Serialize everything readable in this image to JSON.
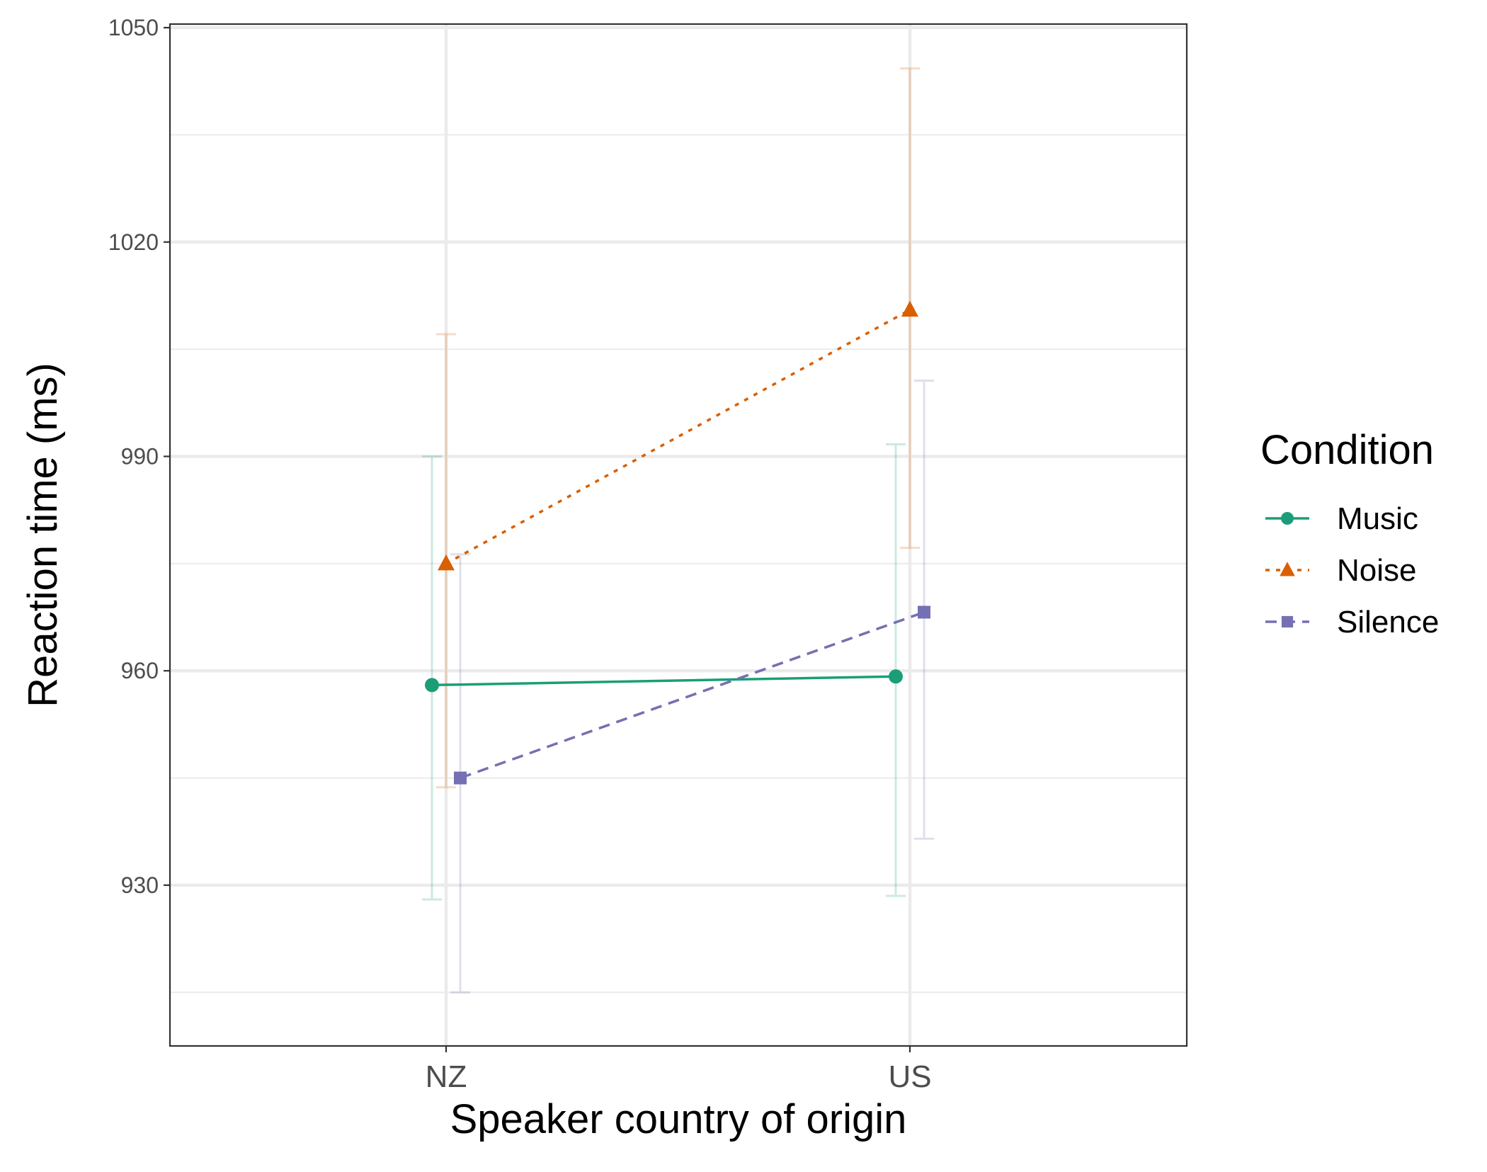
{
  "chart_data": {
    "type": "line",
    "xlabel": "Speaker country of origin",
    "ylabel": "Reaction time (ms)",
    "categories": [
      "NZ",
      "US"
    ],
    "ylim": [
      907.5,
      1050.5
    ],
    "y_ticks": [
      930,
      960,
      990,
      1020,
      1050
    ],
    "y_tick_labels": [
      "930",
      "960",
      "990",
      "1020",
      "1050"
    ],
    "grid": true,
    "legend": {
      "title": "Condition",
      "position": "right"
    },
    "series": [
      {
        "name": "Music",
        "color": "#1b9e77",
        "marker": "circle",
        "linestyle": "solid",
        "values": [
          958.0,
          959.2
        ],
        "error_low": [
          928.0,
          928.5
        ],
        "error_high": [
          990.0,
          991.7
        ]
      },
      {
        "name": "Noise",
        "color": "#d95f02",
        "marker": "triangle",
        "linestyle": "dotted",
        "values": [
          975.0,
          1010.5
        ],
        "error_low": [
          943.7,
          977.2
        ],
        "error_high": [
          1007.1,
          1044.3
        ]
      },
      {
        "name": "Silence",
        "color": "#7570b3",
        "marker": "square",
        "linestyle": "dashed",
        "values": [
          945.0,
          968.2
        ],
        "error_low": [
          915.0,
          936.5
        ],
        "error_high": [
          976.3,
          1000.6
        ]
      }
    ]
  }
}
